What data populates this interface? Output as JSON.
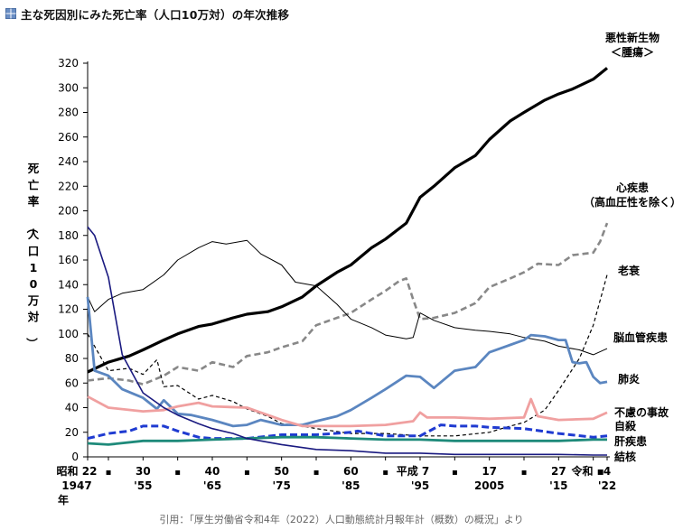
{
  "title": "主な死因別にみた死亡率（人口10万対）の年次推移",
  "title_icon": "grid-icon",
  "source_note": "引用：「厚生労働省令和4年（2022）人口動態統計月報年計（概数）の概況」より",
  "chart_data": {
    "type": "line",
    "ylabel": "死亡率（人口10万対）",
    "ylim": [
      0,
      320
    ],
    "yticks": [
      0,
      20,
      40,
      60,
      80,
      100,
      120,
      140,
      160,
      180,
      200,
      220,
      240,
      260,
      280,
      300,
      320
    ],
    "xlim": [
      1947,
      2022
    ],
    "grid": false,
    "legend": "inline-right",
    "x_ticks": [
      {
        "x": 1947,
        "top": "昭和 22",
        "bottom": "1947"
      },
      {
        "x": 1950,
        "top": "▪",
        "bottom": ""
      },
      {
        "x": 1955,
        "top": "30",
        "bottom": "'55"
      },
      {
        "x": 1960,
        "top": "▪",
        "bottom": ""
      },
      {
        "x": 1965,
        "top": "40",
        "bottom": "'65"
      },
      {
        "x": 1970,
        "top": "▪",
        "bottom": ""
      },
      {
        "x": 1975,
        "top": "50",
        "bottom": "'75"
      },
      {
        "x": 1980,
        "top": "▪",
        "bottom": ""
      },
      {
        "x": 1985,
        "top": "60",
        "bottom": "'85"
      },
      {
        "x": 1990,
        "top": "▪",
        "bottom": ""
      },
      {
        "x": 1995,
        "top": "平成 7",
        "bottom": "'95"
      },
      {
        "x": 2000,
        "top": "▪",
        "bottom": ""
      },
      {
        "x": 2005,
        "top": "17",
        "bottom": "2005"
      },
      {
        "x": 2010,
        "top": "▪",
        "bottom": ""
      },
      {
        "x": 2015,
        "top": "27",
        "bottom": "'15"
      },
      {
        "x": 2020,
        "top": "令和 ▪",
        "bottom": ""
      },
      {
        "x": 2022,
        "top": "4",
        "bottom": "'22"
      }
    ],
    "x_unit_label": "年",
    "series": [
      {
        "name": "悪性新生物＜腫瘍＞",
        "color": "#000000",
        "style": "solid",
        "width": 3.2,
        "label_lines": [
          "悪性新生物",
          "＜腫瘍＞"
        ],
        "x": [
          1947,
          1950,
          1953,
          1955,
          1958,
          1960,
          1963,
          1965,
          1968,
          1970,
          1973,
          1975,
          1978,
          1980,
          1983,
          1985,
          1988,
          1990,
          1993,
          1995,
          1997,
          2000,
          2003,
          2005,
          2008,
          2010,
          2013,
          2015,
          2017,
          2020,
          2022
        ],
        "y": [
          69,
          77,
          82,
          87,
          95,
          100,
          106,
          108,
          113,
          116,
          118,
          122,
          130,
          139,
          150,
          156,
          170,
          177,
          190,
          211,
          220,
          235,
          245,
          258,
          273,
          280,
          290,
          295,
          299,
          307,
          316
        ]
      },
      {
        "name": "心疾患（高血圧性を除く）",
        "color": "#888888",
        "style": "dash",
        "width": 2.6,
        "label_lines": [
          "心疾患",
          "（高血圧性を除く）"
        ],
        "x": [
          1947,
          1950,
          1953,
          1955,
          1958,
          1960,
          1963,
          1965,
          1968,
          1970,
          1973,
          1975,
          1978,
          1980,
          1983,
          1985,
          1988,
          1990,
          1992,
          1993,
          1994,
          1995,
          1997,
          2000,
          2003,
          2005,
          2008,
          2010,
          2012,
          2015,
          2017,
          2020,
          2021,
          2022
        ],
        "y": [
          62,
          64,
          62,
          59,
          66,
          73,
          70,
          77,
          73,
          82,
          85,
          89,
          94,
          107,
          113,
          117,
          128,
          135,
          143,
          145,
          128,
          112,
          113,
          117,
          125,
          138,
          145,
          150,
          157,
          156,
          164,
          166,
          175,
          190
        ]
      },
      {
        "name": "老衰",
        "color": "#000000",
        "style": "dash-thin",
        "width": 1.2,
        "label_lines": [
          "老衰"
        ],
        "x": [
          1947,
          1950,
          1953,
          1955,
          1957,
          1958,
          1960,
          1963,
          1965,
          1968,
          1970,
          1973,
          1975,
          1978,
          1980,
          1985,
          1990,
          1995,
          2000,
          2005,
          2008,
          2010,
          2013,
          2015,
          2018,
          2020,
          2022
        ],
        "y": [
          100,
          70,
          72,
          67,
          79,
          57,
          58,
          47,
          50,
          45,
          39,
          33,
          27,
          25,
          23,
          19,
          19,
          17,
          17,
          20,
          25,
          28,
          38,
          54,
          80,
          107,
          148
        ]
      },
      {
        "name": "脳血管疾患",
        "color": "#000000",
        "style": "solid-thin",
        "width": 1.0,
        "label_lines": [
          "脳血管疾患"
        ],
        "x": [
          1947,
          1948,
          1950,
          1952,
          1955,
          1958,
          1960,
          1963,
          1965,
          1967,
          1970,
          1972,
          1975,
          1977,
          1980,
          1983,
          1985,
          1988,
          1990,
          1993,
          1994,
          1995,
          1997,
          2000,
          2003,
          2005,
          2008,
          2010,
          2013,
          2015,
          2018,
          2020,
          2022
        ],
        "y": [
          130,
          118,
          128,
          133,
          136,
          148,
          160,
          170,
          175,
          173,
          176,
          165,
          156,
          142,
          139,
          124,
          112,
          105,
          99,
          96,
          97,
          117,
          111,
          105,
          103,
          102,
          100,
          97,
          94,
          90,
          87,
          83,
          88
        ]
      },
      {
        "name": "肺炎",
        "color": "#5b86c0",
        "style": "solid",
        "width": 2.8,
        "label_lines": [
          "肺炎"
        ],
        "x": [
          1947,
          1948,
          1950,
          1952,
          1955,
          1957,
          1958,
          1960,
          1962,
          1965,
          1968,
          1970,
          1972,
          1975,
          1978,
          1980,
          1983,
          1985,
          1988,
          1990,
          1993,
          1995,
          1997,
          2000,
          2003,
          2005,
          2008,
          2010,
          2011,
          2013,
          2015,
          2016,
          2017,
          2018,
          2019,
          2020,
          2021,
          2022
        ],
        "y": [
          130,
          70,
          66,
          55,
          48,
          39,
          46,
          35,
          34,
          30,
          25,
          26,
          30,
          26,
          26,
          29,
          33,
          38,
          48,
          55,
          66,
          65,
          56,
          70,
          73,
          85,
          91,
          95,
          99,
          98,
          95,
          95,
          77,
          76,
          77,
          65,
          60,
          61
        ]
      },
      {
        "name": "不慮の事故",
        "color": "#f0a0a0",
        "style": "solid",
        "width": 2.8,
        "label_lines": [
          "不慮の事故"
        ],
        "x": [
          1947,
          1950,
          1955,
          1958,
          1960,
          1963,
          1965,
          1970,
          1975,
          1978,
          1980,
          1985,
          1990,
          1994,
          1995,
          1996,
          2000,
          2005,
          2010,
          2011,
          2012,
          2015,
          2020,
          2022
        ],
        "y": [
          49,
          40,
          37,
          38,
          41,
          44,
          41,
          40,
          30,
          25,
          25,
          25,
          26,
          29,
          36,
          32,
          32,
          31,
          32,
          47,
          33,
          30,
          31,
          36
        ]
      },
      {
        "name": "自殺",
        "color": "#1f3bd1",
        "style": "dash-bold",
        "width": 3.0,
        "label_lines": [
          "自殺"
        ],
        "x": [
          1947,
          1950,
          1953,
          1955,
          1958,
          1960,
          1963,
          1965,
          1968,
          1970,
          1975,
          1980,
          1985,
          1986,
          1990,
          1995,
          1998,
          2000,
          2003,
          2005,
          2010,
          2015,
          2020,
          2022
        ],
        "y": [
          15,
          19,
          21,
          25,
          25,
          21,
          16,
          15,
          15,
          15,
          18,
          18,
          20,
          21,
          17,
          17,
          26,
          25,
          25,
          24,
          23,
          19,
          16,
          17
        ]
      },
      {
        "name": "肝疾患",
        "color": "#1e8a7a",
        "style": "solid",
        "width": 2.8,
        "label_lines": [
          "肝疾患"
        ],
        "x": [
          1947,
          1950,
          1955,
          1960,
          1965,
          1970,
          1975,
          1980,
          1985,
          1990,
          1995,
          2000,
          2005,
          2010,
          2015,
          2020,
          2022
        ],
        "y": [
          11,
          10,
          13,
          13,
          14,
          15,
          16,
          16,
          15,
          14,
          14,
          13,
          13,
          13,
          13,
          14,
          14
        ]
      },
      {
        "name": "結核",
        "color": "#1a1a80",
        "style": "solid",
        "width": 1.6,
        "label_lines": [
          "結核"
        ],
        "x": [
          1947,
          1948,
          1950,
          1952,
          1955,
          1958,
          1960,
          1963,
          1965,
          1968,
          1970,
          1975,
          1980,
          1985,
          1990,
          1995,
          2000,
          2005,
          2010,
          2015,
          2020,
          2022
        ],
        "y": [
          187,
          180,
          146,
          83,
          52,
          40,
          34,
          27,
          23,
          19,
          15,
          10,
          6,
          5,
          3,
          3,
          2,
          2,
          2,
          2,
          1.5,
          1.5
        ]
      }
    ]
  }
}
